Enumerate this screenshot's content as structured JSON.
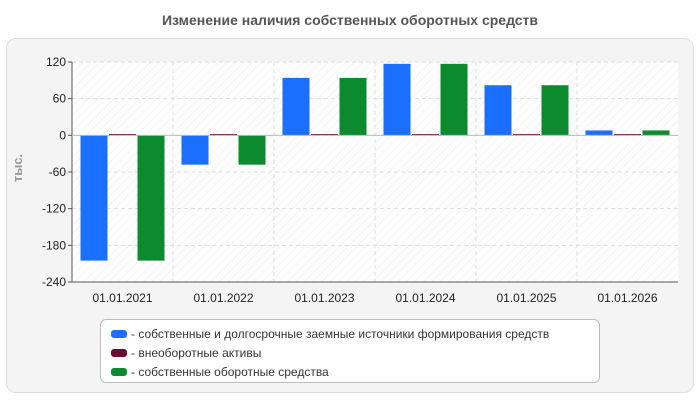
{
  "chart_data": {
    "type": "bar",
    "title": "Изменение наличия собственных оборотных средств",
    "ylabel": "тыс.",
    "xlabel": "",
    "categories": [
      "01.01.2021",
      "01.01.2022",
      "01.01.2023",
      "01.01.2024",
      "01.01.2025",
      "01.01.2026"
    ],
    "series": [
      {
        "name": "- собственные и долгосрочные заемные источники формирования средств",
        "color": "#1a6fff",
        "values": [
          -205,
          -48,
          94,
          117,
          82,
          8
        ]
      },
      {
        "name": "- внеоборотные активы",
        "color": "#6b0a2e",
        "values": [
          2,
          2,
          2,
          2,
          2,
          2
        ]
      },
      {
        "name": "- собственные оборотные средства",
        "color": "#0b8a2e",
        "values": [
          -205,
          -48,
          94,
          117,
          82,
          8
        ]
      }
    ],
    "ylim": [
      -240,
      120
    ],
    "yticks": [
      120,
      60,
      0,
      -60,
      -120,
      -180,
      -240
    ],
    "grid": true,
    "legend_position": "bottom"
  }
}
